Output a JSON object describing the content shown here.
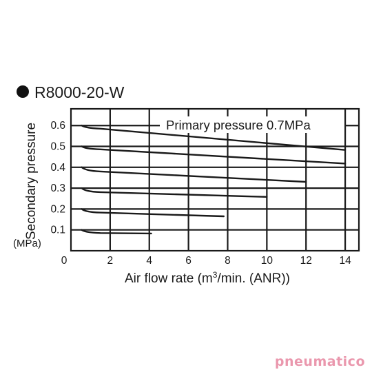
{
  "chart_data": {
    "type": "line",
    "title": "R8000-20-W",
    "annotation": "Primary pressure 0.7MPa",
    "xlabel": "Air flow rate (m3/min. (ANR))",
    "ylabel": "Secondary pressure",
    "yunit": "(MPa)",
    "xlim": [
      0,
      14.7
    ],
    "ylim": [
      0,
      0.68
    ],
    "xticks": [
      0,
      2,
      4,
      6,
      8,
      10,
      12,
      14
    ],
    "yticks": [
      0.1,
      0.2,
      0.3,
      0.4,
      0.5,
      0.6
    ],
    "grid": true,
    "series": [
      {
        "x": [
          0.55,
          0.75,
          1.5,
          14
        ],
        "y": [
          0.6,
          0.588,
          0.585,
          0.483
        ]
      },
      {
        "x": [
          0.55,
          0.75,
          1.5,
          14
        ],
        "y": [
          0.5,
          0.488,
          0.486,
          0.418
        ]
      },
      {
        "x": [
          0.55,
          0.75,
          1.5,
          12
        ],
        "y": [
          0.4,
          0.383,
          0.38,
          0.33
        ]
      },
      {
        "x": [
          0.55,
          0.75,
          1.5,
          10
        ],
        "y": [
          0.3,
          0.283,
          0.281,
          0.258
        ]
      },
      {
        "x": [
          0.55,
          0.75,
          1.5,
          7.8
        ],
        "y": [
          0.2,
          0.185,
          0.183,
          0.165
        ]
      },
      {
        "x": [
          0.55,
          0.75,
          1.5,
          4.1
        ],
        "y": [
          0.1,
          0.087,
          0.085,
          0.083
        ]
      }
    ]
  },
  "watermark": {
    "text": "pneumatico",
    "color": "#ea97ad"
  }
}
